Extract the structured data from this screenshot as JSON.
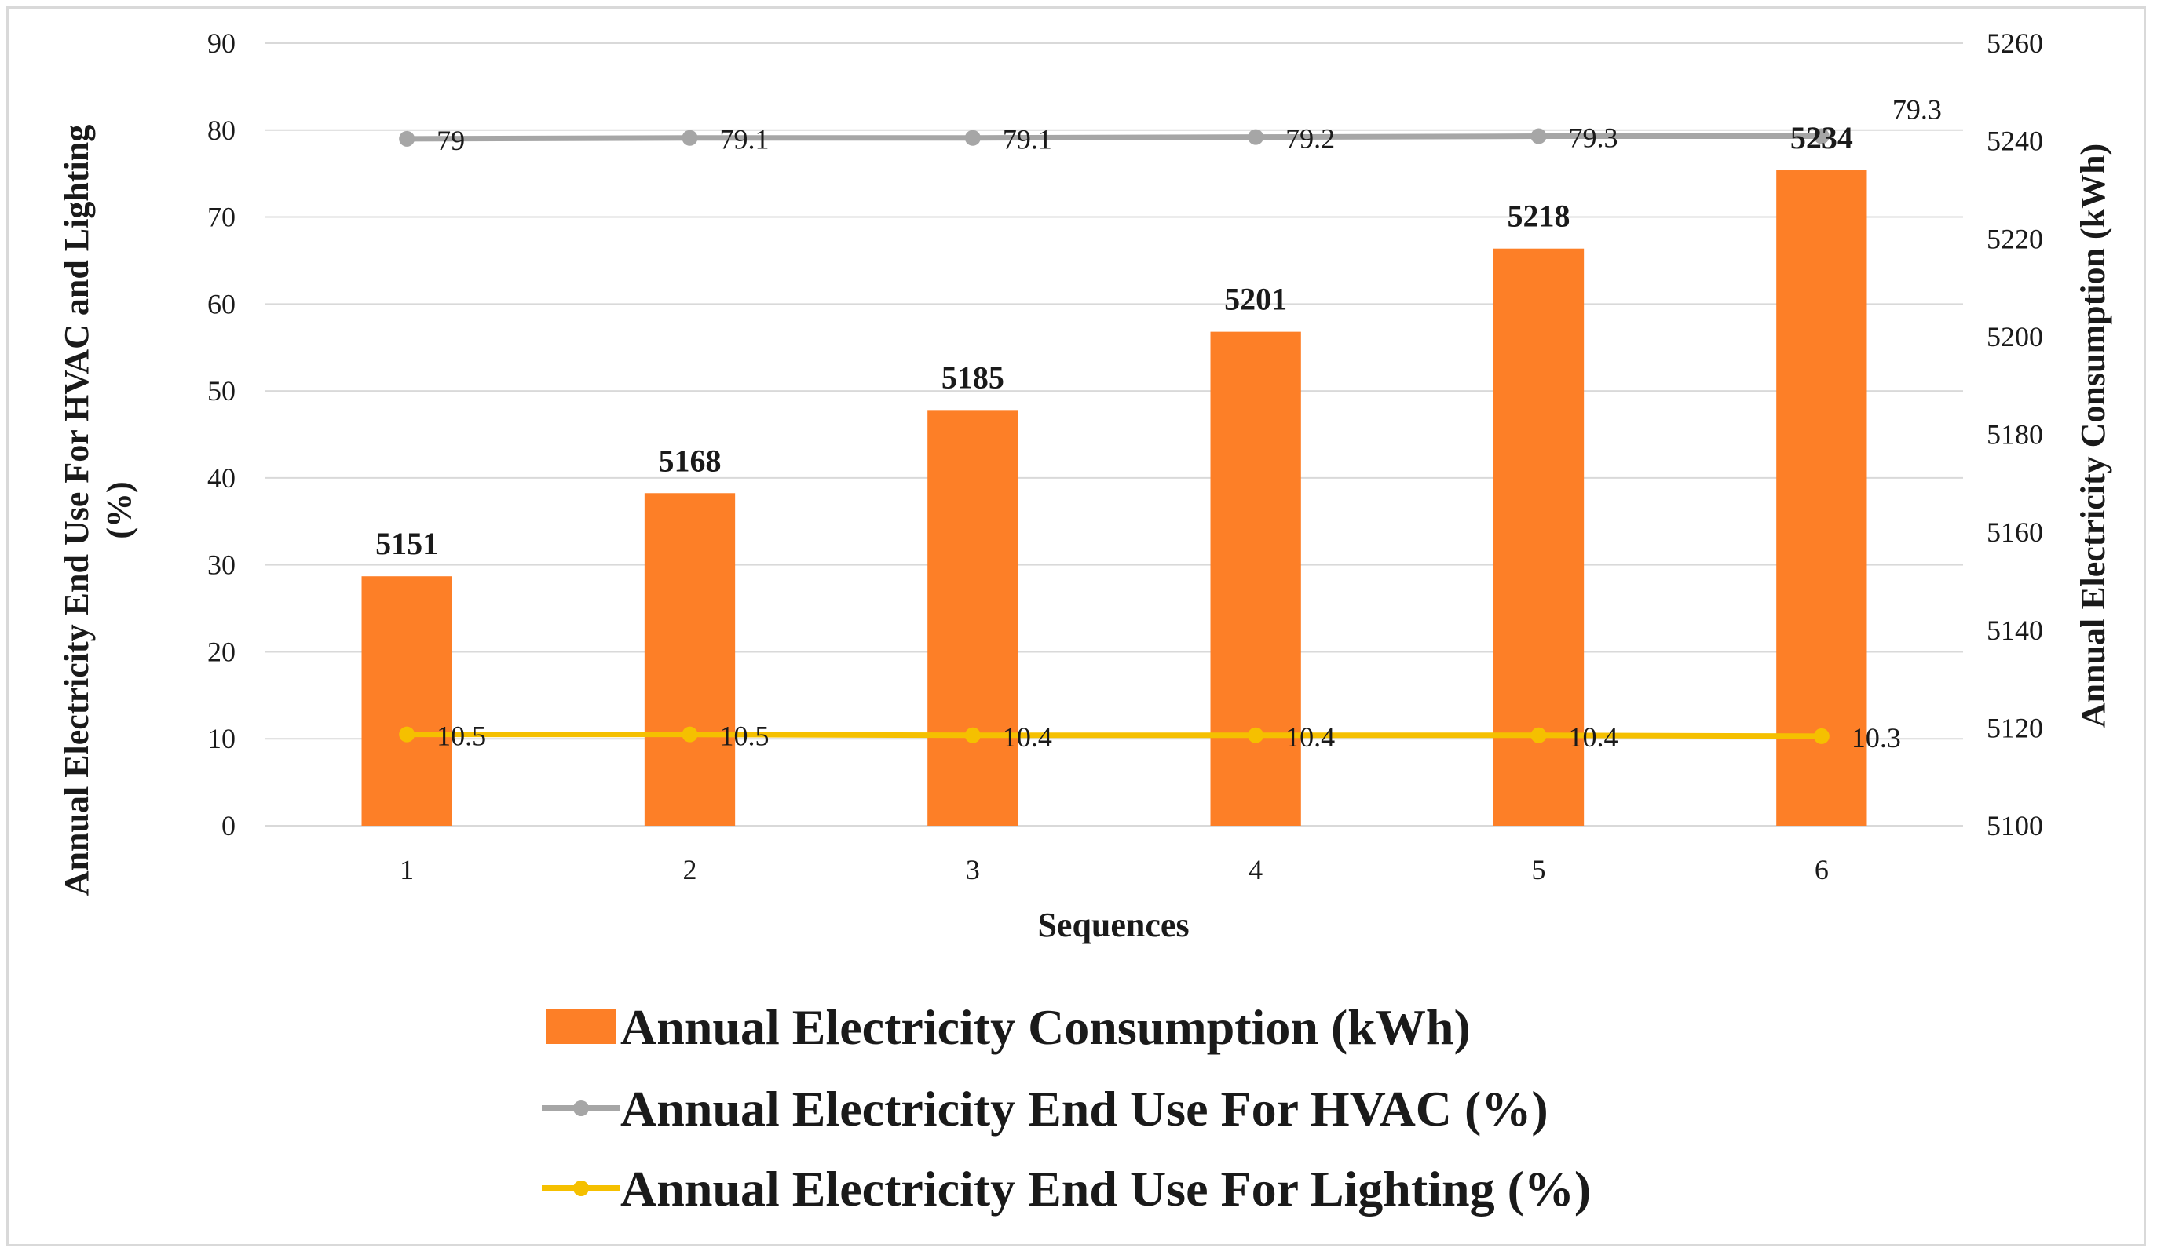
{
  "chart_data": {
    "type": "bar",
    "categories": [
      "1",
      "2",
      "3",
      "4",
      "5",
      "6"
    ],
    "xlabel": "Sequences",
    "ylabel_left": "Annual Electricity End Use For HVAC and Lighting (%)",
    "ylabel_right": "Annual Electricity Consumption (kWh)",
    "ylim_left": [
      0,
      90
    ],
    "ylim_right": [
      5100,
      5260
    ],
    "yticks_left": [
      "0",
      "10",
      "20",
      "30",
      "40",
      "50",
      "60",
      "70",
      "80",
      "90"
    ],
    "yticks_right": [
      "5100",
      "5120",
      "5140",
      "5160",
      "5180",
      "5200",
      "5220",
      "5240",
      "5260"
    ],
    "grid": "horizontal",
    "legend_position": "bottom",
    "series": [
      {
        "name": "Annual Electricity Consumption (kWh)",
        "type": "bar",
        "axis": "right",
        "color": "#fd7f27",
        "values": [
          5151,
          5168,
          5185,
          5201,
          5218,
          5234
        ],
        "labels": [
          "5151",
          "5168",
          "5185",
          "5201",
          "5218",
          "5234"
        ]
      },
      {
        "name": "Annual Electricity End Use For HVAC (%)",
        "type": "line",
        "axis": "left",
        "color": "#a6a6a6",
        "values": [
          79,
          79.1,
          79.1,
          79.2,
          79.3,
          79.3
        ],
        "labels": [
          "79",
          "79.1",
          "79.1",
          "79.2",
          "79.3",
          "79.3"
        ]
      },
      {
        "name": "Annual Electricity End Use For Lighting (%)",
        "type": "line",
        "axis": "left",
        "color": "#f5c000",
        "values": [
          10.5,
          10.5,
          10.4,
          10.4,
          10.4,
          10.3
        ],
        "labels": [
          "10.5",
          "10.5",
          "10.4",
          "10.4",
          "10.4",
          "10.3"
        ]
      }
    ]
  }
}
